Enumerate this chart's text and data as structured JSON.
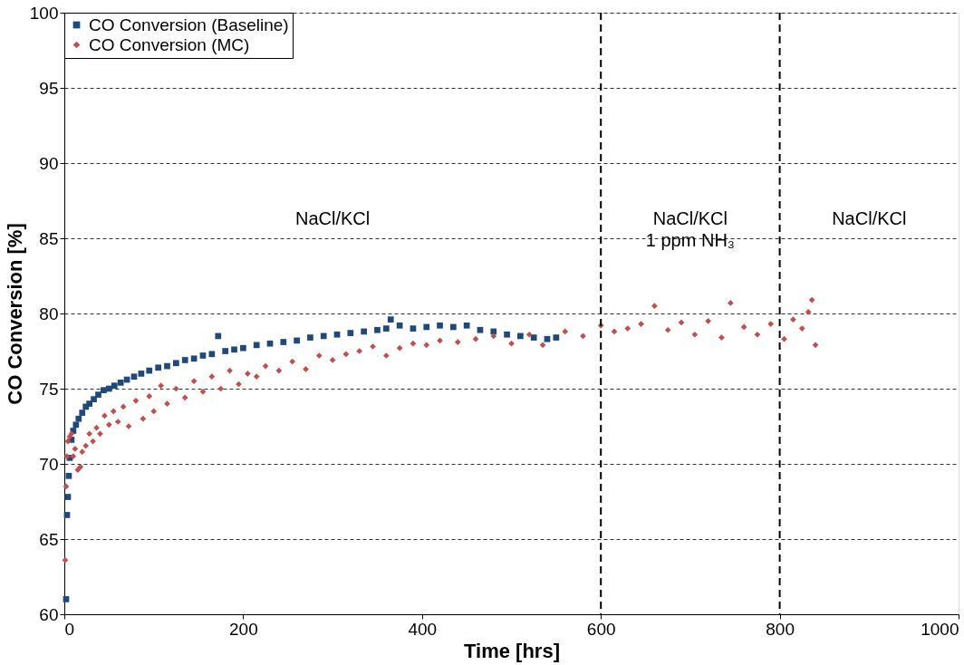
{
  "chart_data": {
    "type": "scatter",
    "xlabel": "Time [hrs]",
    "ylabel": "CO Conversion [%]",
    "xlim": [
      0,
      1000
    ],
    "xticks": [
      0,
      200,
      400,
      600,
      800,
      {
        "value": 1000,
        "label": "1000"
      }
    ],
    "ylim": [
      60,
      100
    ],
    "yticks": [
      60,
      65,
      70,
      75,
      80,
      85,
      90,
      95,
      100
    ],
    "grid": "y",
    "legend": "top left",
    "series": [
      {
        "name": "CO Conversion (Baseline)",
        "color": "#1f497d",
        "marker": "square",
        "x": [
          2,
          3,
          4,
          5,
          6,
          8,
          10,
          13,
          16,
          20,
          24,
          28,
          33,
          38,
          44,
          50,
          56,
          63,
          70,
          78,
          86,
          95,
          105,
          115,
          125,
          135,
          145,
          155,
          165,
          172,
          180,
          190,
          200,
          215,
          230,
          245,
          260,
          275,
          290,
          305,
          320,
          335,
          350,
          360,
          365,
          375,
          390,
          405,
          420,
          435,
          450,
          465,
          480,
          495,
          510,
          525,
          540,
          550
        ],
        "values": [
          61.0,
          66.6,
          67.8,
          69.2,
          70.4,
          71.6,
          72.2,
          72.6,
          73.0,
          73.4,
          73.8,
          74.0,
          74.3,
          74.6,
          74.9,
          75.0,
          75.2,
          75.4,
          75.6,
          75.8,
          76.0,
          76.2,
          76.4,
          76.5,
          76.7,
          76.9,
          77.0,
          77.2,
          77.3,
          78.5,
          77.5,
          77.6,
          77.7,
          77.9,
          78.0,
          78.1,
          78.2,
          78.4,
          78.5,
          78.6,
          78.7,
          78.8,
          78.9,
          79.0,
          79.6,
          79.2,
          79.0,
          79.1,
          79.2,
          79.1,
          79.2,
          78.9,
          78.8,
          78.6,
          78.5,
          78.4,
          78.3,
          78.4
        ]
      },
      {
        "name": "CO Conversion (MC)",
        "color": "#c0504d",
        "marker": "diamond",
        "x": [
          1,
          2,
          3,
          4,
          6,
          8,
          10,
          12,
          15,
          18,
          20,
          24,
          28,
          32,
          36,
          40,
          45,
          50,
          55,
          60,
          66,
          72,
          80,
          88,
          95,
          100,
          108,
          115,
          125,
          135,
          145,
          155,
          165,
          175,
          185,
          195,
          205,
          215,
          225,
          240,
          255,
          270,
          285,
          300,
          315,
          330,
          345,
          360,
          375,
          390,
          405,
          420,
          440,
          460,
          480,
          500,
          520,
          535,
          560,
          580,
          600,
          615,
          630,
          645,
          660,
          675,
          690,
          705,
          720,
          735,
          745,
          760,
          775,
          790,
          805,
          815,
          825,
          832,
          836,
          840
        ],
        "values": [
          63.6,
          68.5,
          70.5,
          71.5,
          71.8,
          72.0,
          70.5,
          71.0,
          69.6,
          69.8,
          70.8,
          71.2,
          72.0,
          71.5,
          72.4,
          72.0,
          73.2,
          72.6,
          73.5,
          72.8,
          73.8,
          72.5,
          74.2,
          73.0,
          74.5,
          73.5,
          75.2,
          74.0,
          75.0,
          74.4,
          75.5,
          74.8,
          75.8,
          75.0,
          76.2,
          75.3,
          76.0,
          75.8,
          76.5,
          76.2,
          76.8,
          76.3,
          77.2,
          76.9,
          77.3,
          77.5,
          77.8,
          77.2,
          77.7,
          78.0,
          77.9,
          78.2,
          78.1,
          78.3,
          78.5,
          78.0,
          78.6,
          77.9,
          78.8,
          78.5,
          79.2,
          78.8,
          79.0,
          79.3,
          80.5,
          78.9,
          79.4,
          78.6,
          79.5,
          78.4,
          80.7,
          79.1,
          78.6,
          79.3,
          78.3,
          79.6,
          79.0,
          80.1,
          80.9,
          77.9
        ]
      }
    ],
    "ref_lines": [
      {
        "axis": "x",
        "value": 600,
        "color": "#000000",
        "line_style": "dashed"
      },
      {
        "axis": "x",
        "value": 800,
        "color": "#000000",
        "line_style": "dashed"
      }
    ],
    "annotations": [
      "NaCl/KCl",
      "NaCl/KCl\n1 ppm NH₃",
      "NaCl/KCl"
    ]
  }
}
